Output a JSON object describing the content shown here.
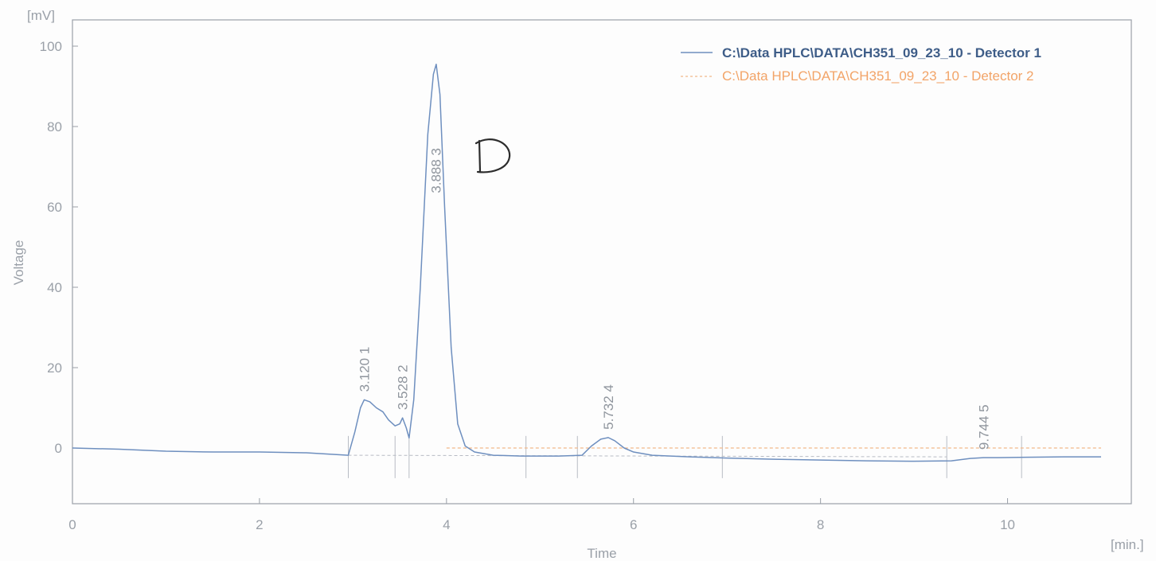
{
  "chart_data": {
    "type": "line",
    "title": "",
    "xlabel": "Time",
    "ylabel": "Voltage",
    "x_unit": "[min.]",
    "y_unit": "[mV]",
    "xlim": [
      0,
      11.2
    ],
    "ylim": [
      -14,
      103
    ],
    "x_ticks": [
      0,
      2,
      4,
      6,
      8,
      10
    ],
    "y_ticks": [
      0,
      20,
      40,
      60,
      80,
      100
    ],
    "grid": false,
    "legend_position": "top-right",
    "colors": {
      "detector_1": "#6e8fbf",
      "detector_2": "#f3b98a",
      "axis": "#9aa0a8",
      "baseline": "#b8bcc4"
    },
    "series": [
      {
        "name": "C:\\Data HPLC\\DATA\\CH351_09_23_10 - Detector 1",
        "x": [
          0,
          0.5,
          1.0,
          1.5,
          2.0,
          2.5,
          2.95,
          3.02,
          3.08,
          3.12,
          3.18,
          3.25,
          3.32,
          3.38,
          3.45,
          3.5,
          3.53,
          3.57,
          3.6,
          3.65,
          3.72,
          3.8,
          3.86,
          3.89,
          3.93,
          3.98,
          4.05,
          4.12,
          4.2,
          4.3,
          4.5,
          4.8,
          5.2,
          5.45,
          5.55,
          5.65,
          5.73,
          5.8,
          5.9,
          6.0,
          6.2,
          6.6,
          7.0,
          7.5,
          8.0,
          8.5,
          9.0,
          9.4,
          9.6,
          9.744,
          9.9,
          10.2,
          10.6,
          11.0
        ],
        "values": [
          0,
          -0.3,
          -0.8,
          -1.0,
          -1.0,
          -1.2,
          -1.8,
          4.0,
          10.0,
          12.0,
          11.5,
          10.0,
          9.0,
          7.0,
          5.5,
          6.0,
          7.5,
          5.0,
          2.5,
          12.0,
          40.0,
          78.0,
          93.0,
          95.5,
          88.0,
          60.0,
          25.0,
          6.0,
          0.5,
          -1.0,
          -1.8,
          -2.0,
          -2.0,
          -1.8,
          0.5,
          2.2,
          2.6,
          1.8,
          0.0,
          -1.0,
          -1.8,
          -2.2,
          -2.5,
          -2.8,
          -3.0,
          -3.2,
          -3.3,
          -3.2,
          -2.6,
          -2.4,
          -2.4,
          -2.3,
          -2.2,
          -2.2
        ]
      },
      {
        "name": "C:\\Data HPLC\\DATA\\CH351_09_23_10 - Detector 2",
        "x": [
          4.0,
          11.0
        ],
        "values": [
          0,
          0
        ]
      }
    ],
    "peaks": [
      {
        "number": "1",
        "retention_time": "3.120",
        "x": 3.12,
        "y": 12.0
      },
      {
        "number": "2",
        "retention_time": "3.528",
        "x": 3.528,
        "y": 7.5
      },
      {
        "number": "3",
        "retention_time": "3.888",
        "x": 3.888,
        "y": 95.5
      },
      {
        "number": "4",
        "retention_time": "5.732",
        "x": 5.732,
        "y": 2.6
      },
      {
        "number": "5",
        "retention_time": "9.744",
        "x": 9.744,
        "y": -2.4
      }
    ],
    "baseline_markers_x": [
      2.95,
      3.45,
      3.6,
      4.85,
      5.4,
      6.95,
      9.35,
      10.15
    ],
    "annotation": "D"
  }
}
